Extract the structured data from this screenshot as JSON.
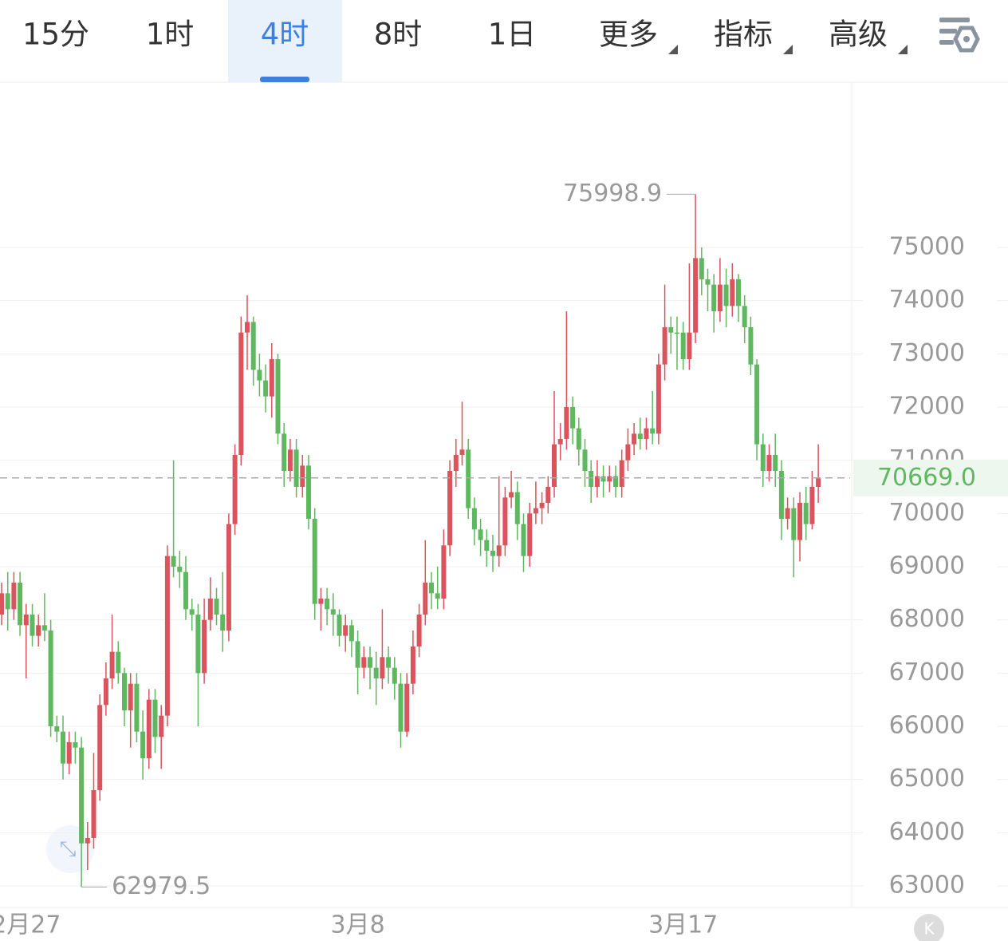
{
  "toolbar": {
    "tabs": [
      {
        "label": "15分",
        "active": false
      },
      {
        "label": "1时",
        "active": false
      },
      {
        "label": "4时",
        "active": true
      },
      {
        "label": "8时",
        "active": false
      },
      {
        "label": "1日",
        "active": false
      },
      {
        "label": "更多",
        "active": false,
        "dropdown": true
      },
      {
        "label": "指标",
        "active": false,
        "dropdown": true
      },
      {
        "label": "高级",
        "active": false,
        "dropdown": true
      }
    ]
  },
  "chart_data": {
    "type": "candlestick",
    "up_color": "#d9545c",
    "down_color": "#5fb760",
    "ylim": [
      62595,
      78105
    ],
    "yticks": [
      63000,
      64000,
      65000,
      66000,
      67000,
      68000,
      69000,
      70000,
      71000,
      72000,
      73000,
      74000,
      75000
    ],
    "grid": true,
    "categories": [
      null,
      null,
      null,
      null,
      "2月27",
      null,
      null,
      null,
      null,
      null,
      null,
      null,
      null,
      null,
      null,
      null,
      null,
      null,
      null,
      null,
      null,
      null,
      null,
      null,
      null,
      null,
      null,
      null,
      null,
      null,
      null,
      null,
      null,
      null,
      null,
      null,
      null,
      null,
      null,
      null,
      null,
      null,
      null,
      null,
      null,
      null,
      null,
      null,
      null,
      null,
      null,
      null,
      null,
      null,
      null,
      null,
      null,
      null,
      "3月8",
      null,
      null,
      null,
      null,
      null,
      null,
      null,
      null,
      null,
      null,
      null,
      null,
      null,
      null,
      null,
      null,
      null,
      null,
      null,
      null,
      null,
      null,
      null,
      null,
      null,
      null,
      null,
      null,
      null,
      null,
      null,
      null,
      null,
      null,
      null,
      null,
      null,
      null,
      null,
      null,
      null,
      null,
      null,
      null,
      null,
      null,
      null,
      null,
      null,
      null,
      null,
      null,
      "3月17",
      null,
      null,
      null,
      null,
      null,
      null,
      null,
      null,
      null,
      null,
      null,
      null,
      null,
      null,
      null,
      null,
      null,
      null,
      null,
      null,
      null,
      null
    ],
    "open": [
      68100,
      68500,
      68200,
      68700,
      67900,
      68100,
      67700,
      67900,
      67800,
      66000,
      65900,
      65300,
      65700,
      65600,
      63800,
      63900,
      64800,
      66400,
      66900,
      67400,
      67000,
      66300,
      66800,
      65900,
      65400,
      66500,
      65800,
      66200,
      69200,
      69000,
      68900,
      68200,
      68100,
      67000,
      68000,
      68400,
      68100,
      67800,
      69800,
      71100,
      73400,
      73600,
      72700,
      72500,
      72200,
      72900,
      71500,
      70800,
      71200,
      70500,
      70900,
      69900,
      68300,
      68400,
      68200,
      68100,
      67700,
      67900,
      67600,
      67100,
      67300,
      67100,
      66900,
      67300,
      67100,
      66800,
      65900,
      66800,
      67500,
      68100,
      68700,
      68500,
      68400,
      69400,
      70800,
      71100,
      71200,
      70100,
      69700,
      69500,
      69300,
      69200,
      69400,
      70300,
      70400,
      69800,
      69200,
      70000,
      70100,
      70200,
      70500,
      71300,
      71400,
      72000,
      71600,
      71200,
      70800,
      70500,
      70700,
      70600,
      70700,
      70500,
      71000,
      71300,
      71500,
      71400,
      71600,
      71500,
      72800,
      73500,
      73400,
      73400,
      72900,
      73400,
      74800,
      74400,
      74300,
      73800,
      74300,
      73900,
      74400,
      73900,
      73500,
      72800,
      71300,
      70800,
      71100,
      70800,
      69900,
      70100,
      69500,
      70200,
      69800,
      70500
    ],
    "high": [
      68700,
      68900,
      68900,
      68900,
      68300,
      68300,
      68100,
      68500,
      68000,
      66200,
      66200,
      65900,
      65900,
      65800,
      64200,
      65500,
      66600,
      67200,
      68100,
      67600,
      67100,
      67000,
      67000,
      66300,
      66700,
      66700,
      66400,
      69400,
      71000,
      69300,
      69200,
      68400,
      68300,
      68400,
      68800,
      68600,
      68900,
      70000,
      71300,
      73700,
      74100,
      73700,
      73000,
      72800,
      73200,
      73000,
      71700,
      71400,
      71400,
      71100,
      71100,
      70100,
      68600,
      68600,
      68500,
      68200,
      68100,
      68000,
      67800,
      67500,
      67500,
      67400,
      68200,
      67500,
      67300,
      67000,
      67000,
      67800,
      68300,
      69500,
      68900,
      69000,
      69700,
      71000,
      71400,
      72100,
      71400,
      70300,
      69900,
      69700,
      69600,
      70700,
      70500,
      70800,
      70600,
      70000,
      70200,
      70600,
      70400,
      70700,
      72300,
      71700,
      73800,
      72200,
      71800,
      71400,
      71000,
      71000,
      70900,
      70900,
      70900,
      71200,
      71600,
      71700,
      71800,
      71800,
      72300,
      73000,
      74300,
      73700,
      73700,
      73600,
      74700,
      75998.9,
      75000,
      74600,
      74500,
      74800,
      74600,
      74700,
      74500,
      74100,
      73700,
      72900,
      71500,
      71300,
      71500,
      71000,
      70300,
      70300,
      70400,
      70500,
      70800,
      71300
    ],
    "low": [
      67900,
      67800,
      68000,
      67700,
      66900,
      67500,
      67500,
      67600,
      65800,
      65700,
      65000,
      65100,
      65300,
      62979.5,
      63300,
      63700,
      64600,
      66200,
      66700,
      66800,
      66000,
      65600,
      65700,
      65000,
      65200,
      65500,
      65200,
      66000,
      68800,
      68600,
      68000,
      67800,
      66000,
      66800,
      67800,
      67900,
      67400,
      67600,
      69600,
      70900,
      72700,
      72400,
      72200,
      71900,
      71800,
      71300,
      70500,
      70600,
      70300,
      70300,
      69700,
      68000,
      67800,
      67900,
      67700,
      67500,
      67400,
      67300,
      66600,
      66900,
      66700,
      66400,
      66700,
      66800,
      66500,
      65600,
      65800,
      66600,
      67300,
      67900,
      68200,
      68200,
      68200,
      69200,
      70500,
      70900,
      69900,
      69400,
      69200,
      69000,
      68900,
      69000,
      69200,
      70100,
      69500,
      68900,
      69000,
      69800,
      69800,
      70000,
      70300,
      71000,
      71200,
      71300,
      70900,
      70500,
      70200,
      70300,
      70300,
      70400,
      70300,
      70300,
      70800,
      71100,
      71200,
      71200,
      71300,
      71300,
      72500,
      73000,
      72700,
      72700,
      72700,
      73200,
      74100,
      73800,
      73400,
      73600,
      73500,
      73700,
      73600,
      73200,
      72600,
      71000,
      70500,
      70600,
      70500,
      69500,
      69700,
      68800,
      69100,
      69500,
      69700,
      70200
    ],
    "close": [
      68500,
      68200,
      68700,
      67900,
      68100,
      67700,
      67900,
      67800,
      66000,
      65900,
      65300,
      65700,
      65600,
      63800,
      63900,
      64800,
      66400,
      66900,
      67400,
      67000,
      66300,
      66800,
      65900,
      65400,
      66500,
      65800,
      66200,
      69200,
      69000,
      68900,
      68200,
      68100,
      67000,
      68000,
      68400,
      68100,
      67800,
      69800,
      71100,
      73400,
      73600,
      72700,
      72500,
      72200,
      72900,
      71500,
      70800,
      71200,
      70500,
      70900,
      69900,
      68300,
      68400,
      68200,
      68100,
      67700,
      67900,
      67600,
      67100,
      67300,
      67100,
      66900,
      67300,
      67100,
      66800,
      65900,
      66800,
      67500,
      68100,
      68700,
      68500,
      68400,
      69400,
      70800,
      71100,
      71200,
      70100,
      69700,
      69500,
      69300,
      69200,
      69400,
      70300,
      70400,
      69800,
      69200,
      70000,
      70100,
      70200,
      70500,
      71300,
      71400,
      72000,
      71600,
      71200,
      70800,
      70500,
      70700,
      70600,
      70700,
      70500,
      71000,
      71300,
      71500,
      71400,
      71600,
      71500,
      72800,
      73500,
      73400,
      73400,
      72900,
      73400,
      74800,
      74400,
      74300,
      73800,
      74300,
      73900,
      74400,
      73900,
      73500,
      72800,
      71300,
      70800,
      71100,
      70800,
      69900,
      70100,
      69500,
      70200,
      69800,
      70500,
      70669
    ],
    "last_price": {
      "value": 70669,
      "label": "70669.0"
    },
    "max_marker": {
      "index": 113
    },
    "min_marker": {
      "index": 13
    }
  }
}
